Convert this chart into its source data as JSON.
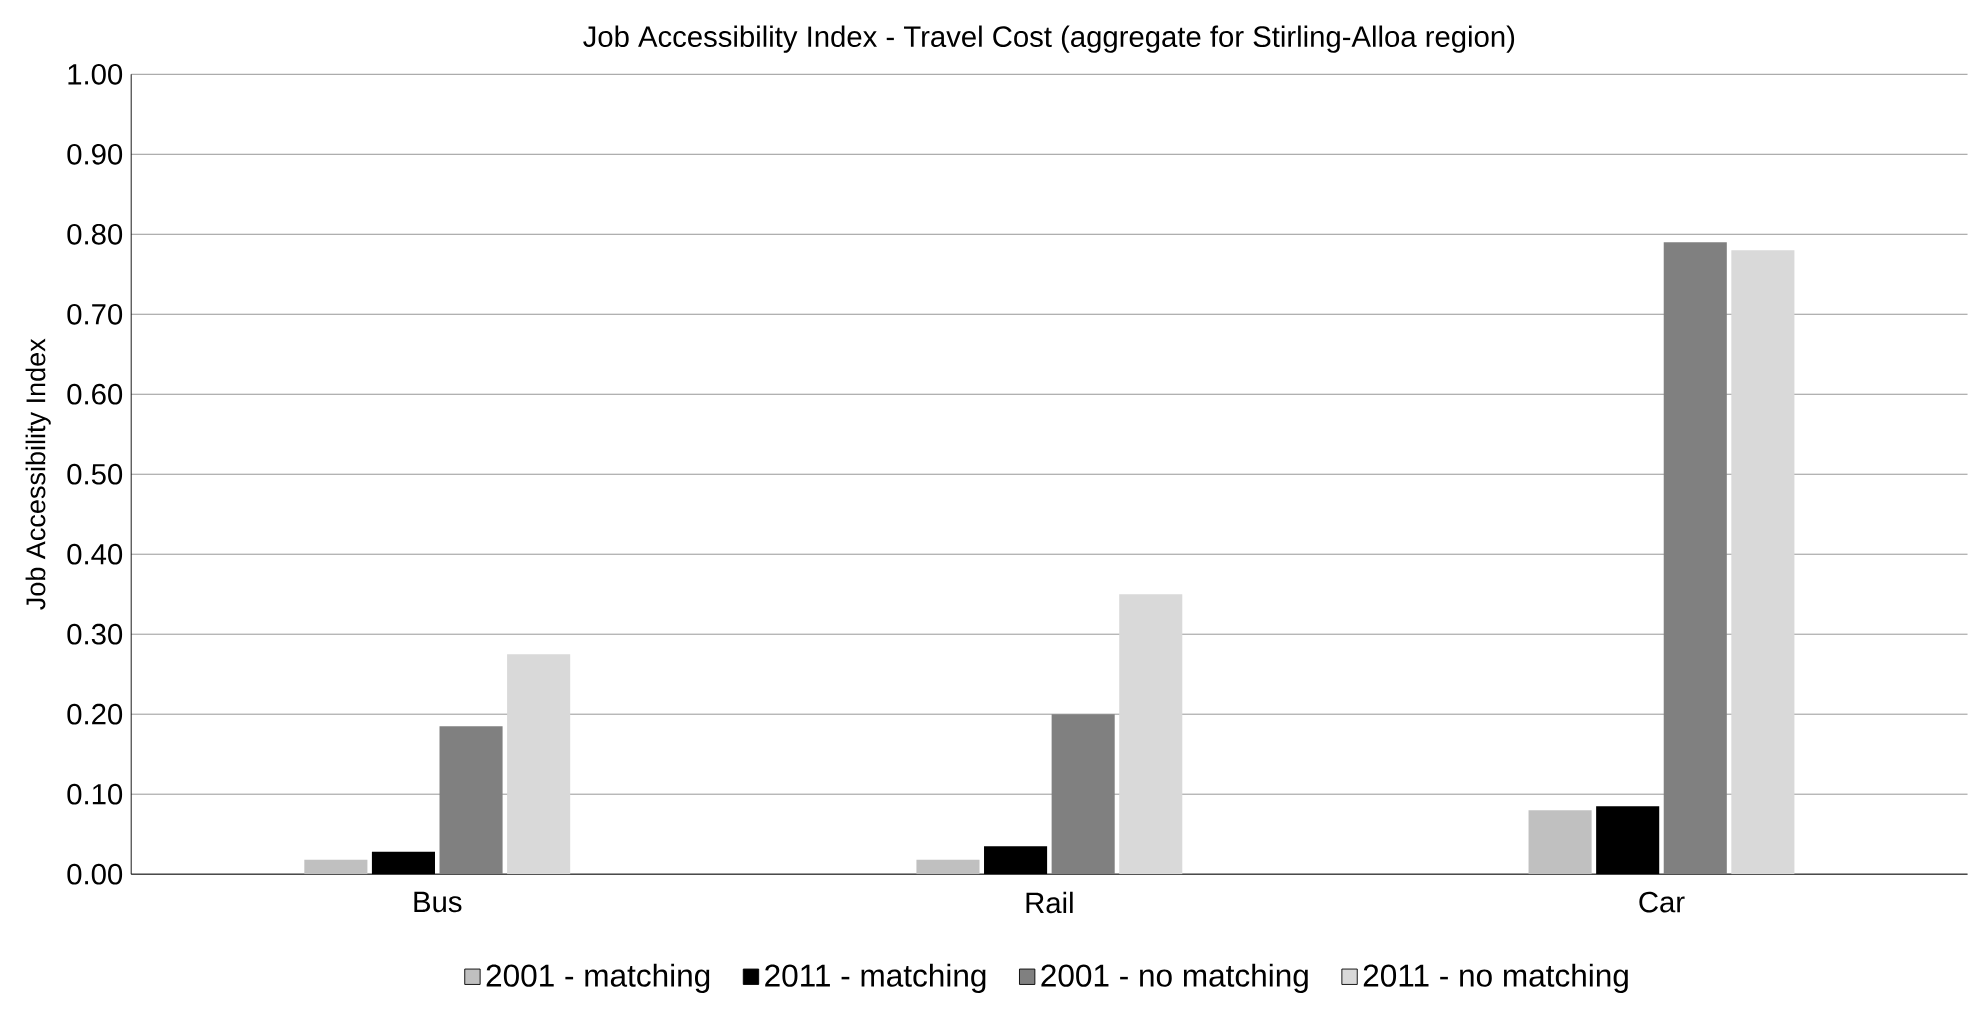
{
  "chart_data": {
    "type": "bar",
    "title": "Job Accessibility Index - Travel Cost  (aggregate for Stirling-Alloa region)",
    "ylabel": "Job Accessibility Index",
    "categories": [
      "Bus",
      "Rail",
      "Car"
    ],
    "series": [
      {
        "name": "2001 - matching",
        "color": "#c0c0c0",
        "values": [
          0.018,
          0.018,
          0.08
        ]
      },
      {
        "name": "2011 - matching",
        "color": "#000000",
        "values": [
          0.028,
          0.035,
          0.085
        ]
      },
      {
        "name": "2001 - no matching",
        "color": "#808080",
        "values": [
          0.185,
          0.2,
          0.79
        ]
      },
      {
        "name": "2011 - no matching",
        "color": "#d9d9d9",
        "values": [
          0.275,
          0.35,
          0.78
        ]
      }
    ],
    "ylim": [
      0,
      1
    ],
    "yticks": [
      {
        "value": 0,
        "label": "0.00"
      },
      {
        "value": 0.1,
        "label": "0.10"
      },
      {
        "value": 0.2,
        "label": "0.20"
      },
      {
        "value": 0.3,
        "label": "0.30"
      },
      {
        "value": 0.4,
        "label": "0.40"
      },
      {
        "value": 0.5,
        "label": "0.50"
      },
      {
        "value": 0.6,
        "label": "0.60"
      },
      {
        "value": 0.7,
        "label": "0.70"
      },
      {
        "value": 0.8,
        "label": "0.80"
      },
      {
        "value": 0.9,
        "label": "0.90"
      },
      {
        "value": 1,
        "label": "1.00"
      }
    ],
    "grid": "y",
    "legend": "bottom"
  }
}
